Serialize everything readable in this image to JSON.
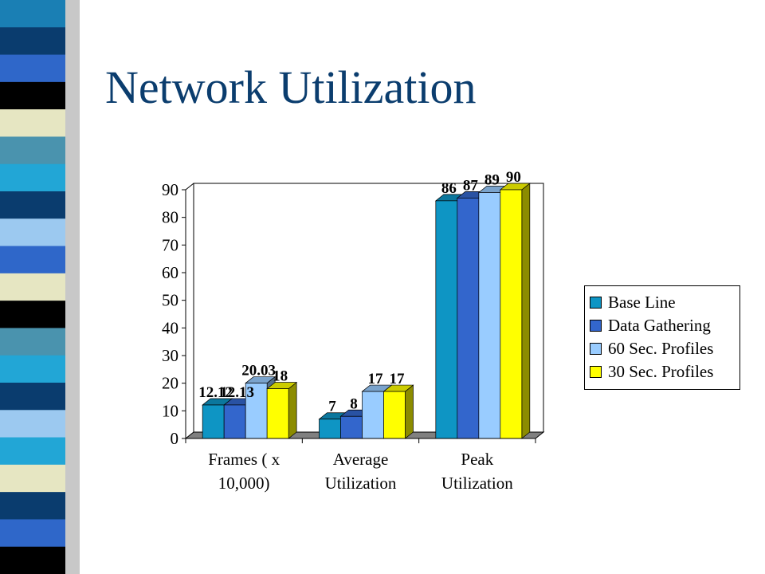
{
  "slide": {
    "title": "Network Utilization"
  },
  "decoration": {
    "stripe_colors": [
      "#1a7fb4",
      "#0a3c6e",
      "#2f67c9",
      "#000000",
      "#e6e6c2",
      "#4a93ae",
      "#22a6d6",
      "#0a3c6e",
      "#9cc9f0",
      "#2f67c9",
      "#e6e6c2",
      "#000000",
      "#4a93ae",
      "#22a6d6",
      "#0a3c6e",
      "#9cc9f0",
      "#22a6d6",
      "#e6e6c2",
      "#0a3c6e",
      "#2f67c9",
      "#000000"
    ]
  },
  "chart_data": {
    "type": "bar",
    "variant": "3d-clustered-column",
    "title": "",
    "xlabel": "",
    "ylabel": "",
    "ylim": [
      0,
      90
    ],
    "yticks": [
      "0",
      "10",
      "20",
      "30",
      "40",
      "50",
      "60",
      "70",
      "80",
      "90"
    ],
    "categories": [
      [
        "Frames ( x",
        "10,000)"
      ],
      [
        "Average",
        "Utilization"
      ],
      [
        "Peak",
        "Utilization"
      ]
    ],
    "series": [
      {
        "name": "Base Line",
        "color": "#0e95c4",
        "values": [
          12.12,
          7,
          86
        ],
        "labels": [
          "12.12",
          "7",
          "86"
        ]
      },
      {
        "name": "Data Gathering",
        "color": "#3366cc",
        "values": [
          12.13,
          8,
          87
        ],
        "labels": [
          "12.13",
          "8",
          "87"
        ]
      },
      {
        "name": "60 Sec. Profiles",
        "color": "#99ccff",
        "values": [
          20.03,
          17,
          89
        ],
        "labels": [
          "20.03",
          "17",
          "89"
        ]
      },
      {
        "name": "30 Sec. Profiles",
        "color": "#ffff00",
        "values": [
          18,
          17,
          90
        ],
        "labels": [
          "18",
          "17",
          "90"
        ]
      }
    ],
    "grid": false,
    "legend": "right",
    "wall_color": "#ffffff",
    "floor_color": "#808080"
  }
}
